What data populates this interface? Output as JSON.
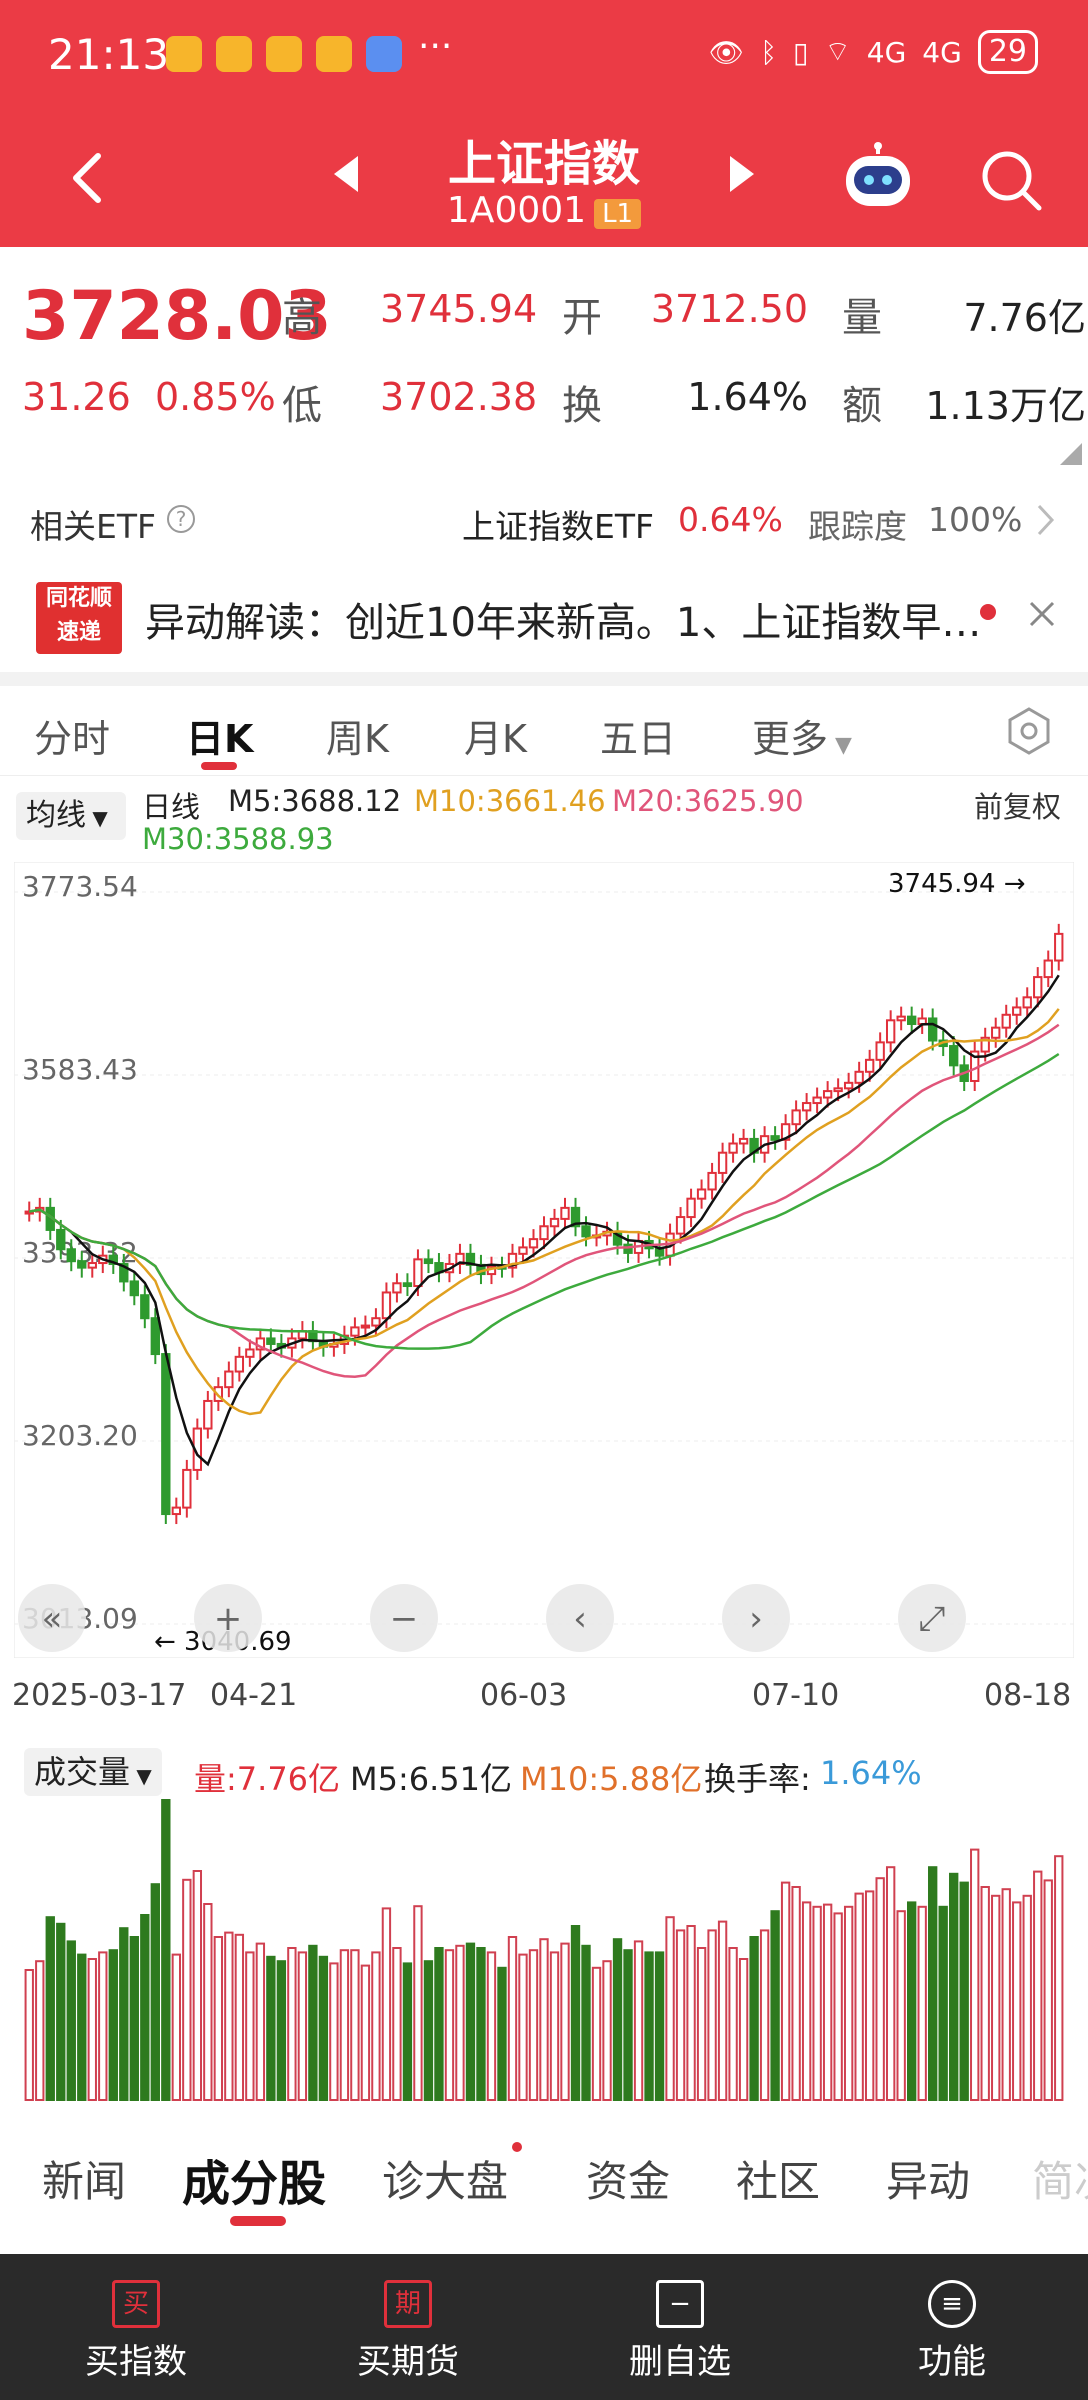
{
  "status": {
    "time": "21:13",
    "dots": "···",
    "net1": "4G",
    "net2": "4G",
    "battery": "29"
  },
  "header": {
    "title": "上证指数",
    "code": "1A0001",
    "level": "L1"
  },
  "quote": {
    "price": "3728.03",
    "change": "31.26",
    "change_pct": "0.85%",
    "high_label": "高",
    "high": "3745.94",
    "open_label": "开",
    "open": "3712.50",
    "vol_label": "量",
    "volume": "7.76亿",
    "low_label": "低",
    "low": "3702.38",
    "turnover_label": "换",
    "turnover": "1.64%",
    "amount_label": "额",
    "amount": "1.13万亿"
  },
  "etf": {
    "label": "相关ETF",
    "name": "上证指数ETF",
    "pct": "0.64%",
    "track_label": "跟踪度",
    "track": "100%"
  },
  "news": {
    "logo_top": "同花顺",
    "logo_bottom": "速递",
    "text": "异动解读：创近10年来新高。1、上证指数早…"
  },
  "tabs": [
    "分时",
    "日K",
    "周K",
    "月K",
    "五日",
    "更多"
  ],
  "ma": {
    "btn": "均线",
    "line": "日线",
    "m5": "M5:3688.12",
    "m10": "M10:3661.46",
    "m20": "M20:3625.90",
    "m30": "M30:3588.93",
    "adj": "前复权"
  },
  "chart_data": {
    "type": "candlestick",
    "y_ticks": [
      "3773.54",
      "3583.43",
      "3393.32",
      "3203.20",
      "3013.09"
    ],
    "ylim": [
      3013.09,
      3773.54
    ],
    "x_ticks": [
      "2025-03-17",
      "04-21",
      "06-03",
      "07-10",
      "08-18"
    ],
    "high_marker": "3745.94",
    "low_marker": "3040.69",
    "closes": [
      3426,
      3430,
      3406,
      3385,
      3372,
      3365,
      3370,
      3378,
      3369,
      3350,
      3335,
      3310,
      3271,
      3097,
      3104,
      3145,
      3190,
      3220,
      3235,
      3252,
      3268,
      3276,
      3288,
      3282,
      3278,
      3288,
      3296,
      3285,
      3279,
      3282,
      3291,
      3300,
      3302,
      3310,
      3338,
      3348,
      3345,
      3374,
      3370,
      3360,
      3369,
      3380,
      3368,
      3358,
      3366,
      3365,
      3380,
      3387,
      3396,
      3410,
      3418,
      3430,
      3410,
      3399,
      3400,
      3404,
      3390,
      3381,
      3394,
      3386,
      3378,
      3402,
      3420,
      3440,
      3450,
      3468,
      3490,
      3500,
      3505,
      3490,
      3508,
      3504,
      3521,
      3536,
      3544,
      3550,
      3557,
      3560,
      3566,
      3578,
      3591,
      3610,
      3634,
      3638,
      3630,
      3636,
      3612,
      3606,
      3585,
      3568,
      3600,
      3615,
      3626,
      3640,
      3648,
      3659,
      3681,
      3699,
      3728
    ]
  },
  "tools": [
    "«",
    "+",
    "−",
    "‹",
    "›",
    "⤢"
  ],
  "volume": {
    "label": "成交量",
    "vol": "量:7.76亿",
    "m5": "M5:6.51亿",
    "m10": "M10:5.88亿",
    "turn_label": "换手率:",
    "turn": "1.64%"
  },
  "bottom_tabs": [
    "新闻",
    "成分股",
    "诊大盘",
    "资金",
    "社区",
    "异动",
    "简况"
  ],
  "bottom_bar": [
    {
      "icon": "买",
      "label": "买指数"
    },
    {
      "icon": "期",
      "label": "买期货"
    },
    {
      "icon": "−",
      "label": "删自选"
    },
    {
      "icon": "≡",
      "label": "功能"
    }
  ]
}
